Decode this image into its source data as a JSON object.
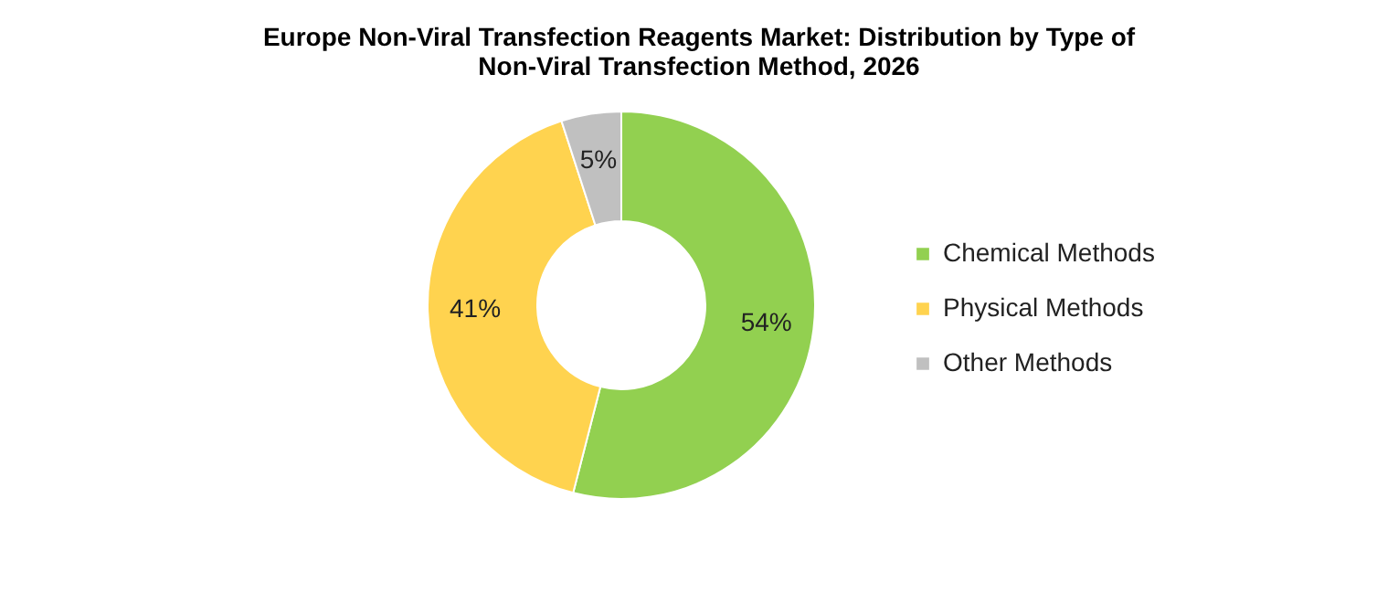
{
  "chart_data": {
    "type": "donut",
    "title": "Europe Non-Viral Transfection Reagents Market: Distribution by Type of Non-Viral Transfection Method, 2026",
    "categories": [
      "Chemical Methods",
      "Physical Methods",
      "Other Methods"
    ],
    "values": [
      54,
      41,
      5
    ],
    "value_labels": [
      "54%",
      "41%",
      "5%"
    ],
    "colors": [
      "#92d050",
      "#ffd34f",
      "#c0c0c0"
    ],
    "legend": "right"
  }
}
